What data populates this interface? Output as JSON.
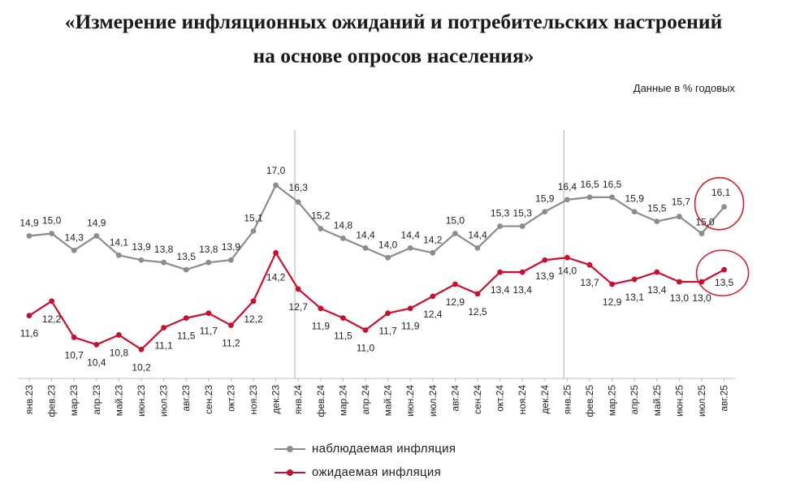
{
  "title": {
    "line1": "«Измерение инфляционных ожиданий и потребительских настроений",
    "line2": "на основе опросов населения»"
  },
  "units_note": "Данные в % годовых",
  "colors": {
    "observed": "#8c8c8c",
    "expected": "#c8102e",
    "highlight_circle": "#d0202a",
    "divider": "#b0b0b0"
  },
  "chart_data": {
    "type": "line",
    "title": "",
    "xlabel": "",
    "ylabel": "",
    "grid": false,
    "legend_position": "bottom",
    "categories": [
      "янв.23",
      "фев.23",
      "мар.23",
      "апр.23",
      "май.23",
      "июн.23",
      "июл.23",
      "авг.23",
      "сен.23",
      "окт.23",
      "ноя.23",
      "дек.23",
      "янв.24",
      "фев.24",
      "мар.24",
      "апр.24",
      "май.24",
      "июн.24",
      "июл.24",
      "авг.24",
      "сен.24",
      "окт.24",
      "ноя.24",
      "дек.24",
      "янв.25",
      "фев.25",
      "мар.25",
      "апр.25",
      "май.25",
      "июн.25",
      "июл.25",
      "авг.25"
    ],
    "series": [
      {
        "name": "наблюдаемая инфляция",
        "values": [
          14.9,
          15.0,
          14.3,
          14.9,
          14.1,
          13.9,
          13.8,
          13.5,
          13.8,
          13.9,
          15.1,
          17.0,
          16.3,
          15.2,
          14.8,
          14.4,
          14.0,
          14.4,
          14.2,
          15.0,
          14.4,
          15.3,
          15.3,
          15.9,
          16.4,
          16.5,
          16.5,
          15.9,
          15.5,
          15.7,
          15.0,
          16.1
        ],
        "labels": [
          "14,9",
          "15,0",
          "14,3",
          "14,9",
          "14,1",
          "13,9",
          "13,8",
          "13,5",
          "13,8",
          "13,9",
          "15,1",
          "17,0",
          "16,3",
          "15,2",
          "14,8",
          "14,4",
          "14,0",
          "14,4",
          "14,2",
          "15,0",
          "14,4",
          "15,3",
          "15,3",
          "15,9",
          "16,4",
          "16,5",
          "16,5",
          "15,9",
          "15,5",
          "15,7",
          "15,0",
          "16,1"
        ]
      },
      {
        "name": "ожидаемая инфляция",
        "values": [
          11.6,
          12.2,
          10.7,
          10.4,
          10.8,
          10.2,
          11.1,
          11.5,
          11.7,
          11.2,
          12.2,
          14.2,
          12.7,
          11.9,
          11.5,
          11.0,
          11.7,
          11.9,
          12.4,
          12.9,
          12.5,
          13.4,
          13.4,
          13.9,
          14.0,
          13.7,
          12.9,
          13.1,
          13.4,
          13.0,
          13.0,
          13.5
        ],
        "labels": [
          "11,6",
          "12,2",
          "10,7",
          "10,4",
          "10,8",
          "10,2",
          "11,1",
          "11,5",
          "11,7",
          "11,2",
          "12,2",
          "14,2",
          "12,7",
          "11,9",
          "11,5",
          "11,0",
          "11,7",
          "11,9",
          "12,4",
          "12,9",
          "12,5",
          "13,4",
          "13,4",
          "13,9",
          "14,0",
          "13,7",
          "12,9",
          "13,1",
          "13,4",
          "13,0",
          "13,0",
          "13,5"
        ]
      }
    ],
    "year_dividers_after": [
      "дек.23",
      "дек.24"
    ],
    "highlighted_points": [
      "авг.25"
    ]
  }
}
